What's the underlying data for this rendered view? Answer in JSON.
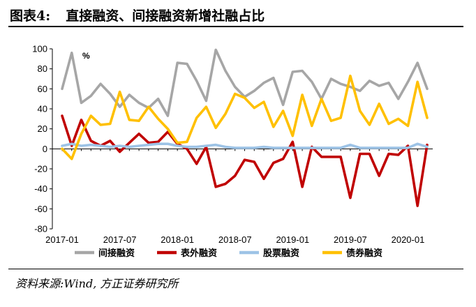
{
  "title": {
    "prefix": "图表4:",
    "text": "直接融资、间接融资新增社融占比"
  },
  "source": "资料来源:Wind, 方正证券研究所",
  "chart_data": {
    "type": "line",
    "unit_label": "%",
    "ylim": [
      -80,
      100
    ],
    "yticks": [
      -80,
      -60,
      -40,
      -20,
      0,
      20,
      40,
      60,
      80,
      100
    ],
    "x": [
      "2017-01",
      "2017-02",
      "2017-03",
      "2017-04",
      "2017-05",
      "2017-06",
      "2017-07",
      "2017-08",
      "2017-09",
      "2017-10",
      "2017-11",
      "2017-12",
      "2018-01",
      "2018-02",
      "2018-03",
      "2018-04",
      "2018-05",
      "2018-06",
      "2018-07",
      "2018-08",
      "2018-09",
      "2018-10",
      "2018-11",
      "2018-12",
      "2019-01",
      "2019-02",
      "2019-03",
      "2019-04",
      "2019-05",
      "2019-06",
      "2019-07",
      "2019-08",
      "2019-09",
      "2019-10",
      "2019-11",
      "2019-12",
      "2020-01",
      "2020-02",
      "2020-03"
    ],
    "xticks": [
      "2017-01",
      "2017-07",
      "2018-01",
      "2018-07",
      "2019-01",
      "2019-07",
      "2020-01"
    ],
    "grid": false,
    "legend_position": "bottom",
    "series": [
      {
        "name": "间接融资",
        "color": "#A6A6A6",
        "values": [
          60,
          96,
          46,
          53,
          65,
          55,
          42,
          54,
          46,
          41,
          50,
          33,
          86,
          85,
          68,
          48,
          99,
          78,
          62,
          52,
          58,
          66,
          71,
          44,
          77,
          78,
          67,
          50,
          70,
          65,
          62,
          58,
          68,
          63,
          66,
          50,
          67,
          86,
          60
        ]
      },
      {
        "name": "表外融资",
        "color": "#C00000",
        "values": [
          33,
          3,
          29,
          8,
          3,
          8,
          -3,
          6,
          15,
          6,
          7,
          17,
          5,
          0,
          -15,
          2,
          -38,
          -35,
          -27,
          -11,
          -13,
          -30,
          -14,
          -10,
          7,
          -38,
          2,
          -8,
          -8,
          -8,
          -49,
          -5,
          -5,
          -27,
          -5,
          -6,
          3,
          -57,
          4
        ]
      },
      {
        "name": "股票融资",
        "color": "#9DC3E6",
        "values": [
          3,
          5,
          3,
          4,
          3,
          2,
          3,
          2,
          3,
          4,
          5,
          5,
          3,
          2,
          2,
          3,
          4,
          2,
          1,
          1,
          1,
          2,
          1,
          1,
          1,
          1,
          1,
          1,
          1,
          1,
          4,
          1,
          1,
          1,
          1,
          1,
          1,
          5,
          2
        ]
      },
      {
        "name": "债券融资",
        "color": "#FFC000",
        "values": [
          0,
          -10,
          15,
          33,
          24,
          25,
          57,
          29,
          28,
          42,
          30,
          20,
          6,
          7,
          31,
          42,
          21,
          35,
          55,
          51,
          41,
          47,
          22,
          38,
          13,
          54,
          23,
          50,
          28,
          31,
          73,
          38,
          24,
          45,
          25,
          30,
          23,
          67,
          31
        ]
      }
    ]
  }
}
